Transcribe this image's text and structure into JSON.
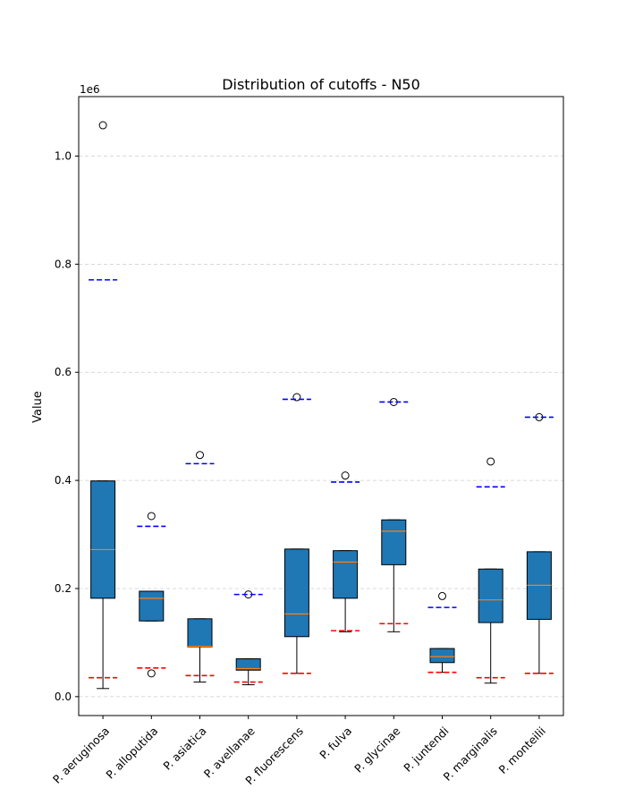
{
  "chart_data": {
    "type": "box",
    "title": "Distribution of cutoffs - N50",
    "ylabel": "Value",
    "xlabel": "",
    "y_offset_label": "1e6",
    "y_scale_factor": 1000000,
    "ylim": [
      -35000,
      1110000
    ],
    "yticks": [
      0,
      200000,
      400000,
      600000,
      800000,
      1000000
    ],
    "ytick_labels": [
      "0.0",
      "0.2",
      "0.4",
      "0.6",
      "0.8",
      "1.0"
    ],
    "grid_y": true,
    "colors": {
      "box_fill": "#1f77b4",
      "median": "#ff7f0e",
      "upper_cutoff": "#0000ff",
      "lower_cutoff": "#ff0000",
      "grid": "#cccccc"
    },
    "categories": [
      "P. aeruginosa",
      "P. alloputida",
      "P. asiatica",
      "P. avellanae",
      "P. fluorescens",
      "P. fulva",
      "P. glycinae",
      "P. juntendi",
      "P. marginalis",
      "P. monteilii"
    ],
    "boxes": [
      {
        "whisker_low": 15000,
        "q1": 182000,
        "median": 272000,
        "q3": 399000,
        "whisker_high": 399000,
        "outliers": [
          1057000
        ],
        "upper_cutoff": 771000,
        "lower_cutoff": 35000
      },
      {
        "whisker_low": 140000,
        "q1": 140000,
        "median": 182000,
        "q3": 195000,
        "whisker_high": 195000,
        "outliers": [
          334000,
          43000
        ],
        "upper_cutoff": 315000,
        "lower_cutoff": 53000
      },
      {
        "whisker_low": 27000,
        "q1": 92000,
        "median": 93000,
        "q3": 144000,
        "whisker_high": 144000,
        "outliers": [
          447000
        ],
        "upper_cutoff": 431000,
        "lower_cutoff": 39000
      },
      {
        "whisker_low": 22000,
        "q1": 49000,
        "median": 52000,
        "q3": 70000,
        "whisker_high": 70000,
        "outliers": [
          189000
        ],
        "upper_cutoff": 189000,
        "lower_cutoff": 27000
      },
      {
        "whisker_low": 43000,
        "q1": 111000,
        "median": 153000,
        "q3": 273000,
        "whisker_high": 273000,
        "outliers": [
          554000
        ],
        "upper_cutoff": 550000,
        "lower_cutoff": 43000
      },
      {
        "whisker_low": 120000,
        "q1": 182000,
        "median": 249000,
        "q3": 270000,
        "whisker_high": 270000,
        "outliers": [
          409000
        ],
        "upper_cutoff": 397000,
        "lower_cutoff": 122000
      },
      {
        "whisker_low": 120000,
        "q1": 244000,
        "median": 306000,
        "q3": 327000,
        "whisker_high": 327000,
        "outliers": [
          545000
        ],
        "upper_cutoff": 545000,
        "lower_cutoff": 135000
      },
      {
        "whisker_low": 45000,
        "q1": 63000,
        "median": 74000,
        "q3": 89000,
        "whisker_high": 89000,
        "outliers": [
          186000
        ],
        "upper_cutoff": 165000,
        "lower_cutoff": 45000
      },
      {
        "whisker_low": 25000,
        "q1": 137000,
        "median": 179000,
        "q3": 236000,
        "whisker_high": 236000,
        "outliers": [
          435000
        ],
        "upper_cutoff": 388000,
        "lower_cutoff": 35000
      },
      {
        "whisker_low": 43000,
        "q1": 143000,
        "median": 206000,
        "q3": 268000,
        "whisker_high": 268000,
        "outliers": [
          517000
        ],
        "upper_cutoff": 517000,
        "lower_cutoff": 43000
      }
    ]
  }
}
